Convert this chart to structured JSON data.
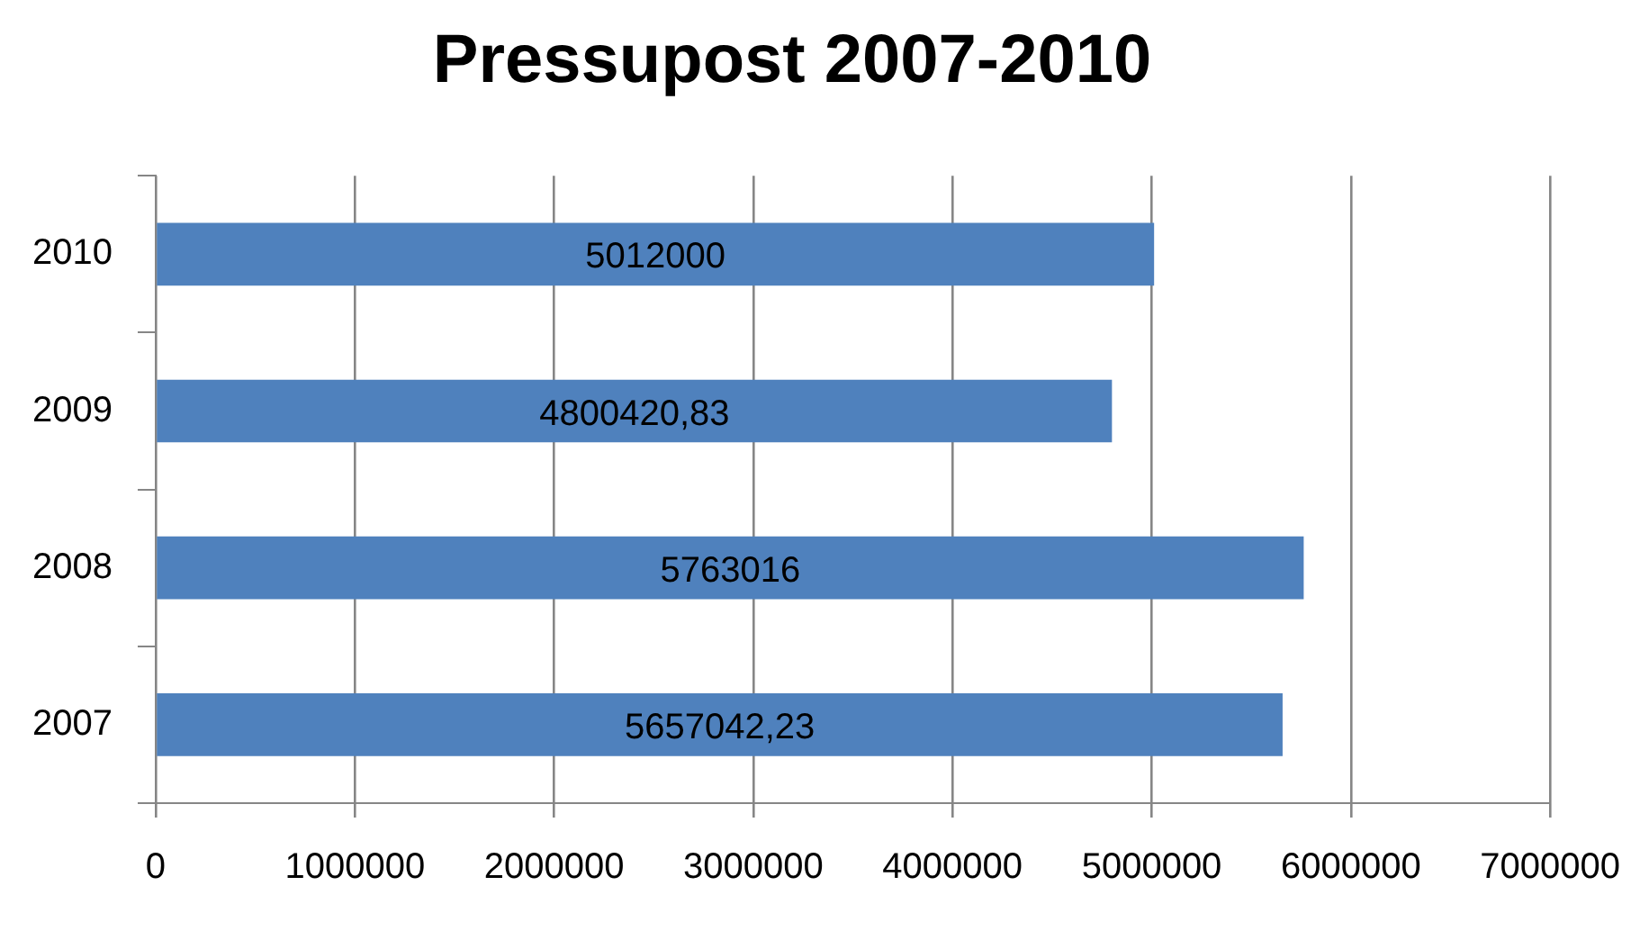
{
  "chart_data": {
    "type": "bar",
    "orientation": "horizontal",
    "title": "Pressupost 2007-2010",
    "categories": [
      "2010",
      "2009",
      "2008",
      "2007"
    ],
    "values": [
      5012000,
      4800420.83,
      5763016,
      5657042.23
    ],
    "value_labels": [
      "5012000",
      "4800420,83",
      "5763016",
      "5657042,23"
    ],
    "color": "#4f81bd",
    "xlim": [
      0,
      7000000
    ],
    "xticks": [
      0,
      1000000,
      2000000,
      3000000,
      4000000,
      5000000,
      6000000,
      7000000
    ],
    "grid": "x",
    "legend": false
  }
}
